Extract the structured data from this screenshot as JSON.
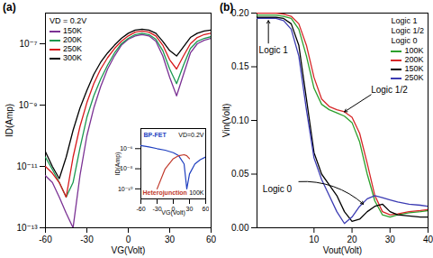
{
  "chart_data": [
    {
      "type": "line",
      "title": "(a)",
      "x_label": "VG(Volt)",
      "y_label": "ID(Amp)",
      "log": "y",
      "legend": "top-left",
      "annotations": [
        "VD = 0.2V"
      ],
      "xlim": [
        -60,
        60
      ],
      "xticks": [
        -60,
        -30,
        0,
        30,
        60
      ],
      "ylim": [
        1e-13,
        1e-06
      ],
      "yticks": [
        {
          "value": 1e-13,
          "label": "10⁻¹³"
        },
        {
          "value": 1e-11,
          "label": "10⁻¹¹"
        },
        {
          "value": 1e-09,
          "label": "10⁻⁹"
        },
        {
          "value": 1e-07,
          "label": "10⁻⁷"
        }
      ],
      "x": [
        -60,
        -55,
        -50,
        -45,
        -40,
        -35,
        -30,
        -25,
        -20,
        -15,
        -10,
        -5,
        0,
        5,
        10,
        15,
        20,
        25,
        30,
        35,
        40,
        45,
        50,
        55,
        60
      ],
      "series": [
        {
          "name": "150K",
          "color": "#7b3294",
          "values": [
            5e-12,
            3e-12,
            1e-12,
            3e-13,
            1e-13,
            5e-12,
            1e-10,
            8e-10,
            4e-09,
            1.5e-08,
            4e-08,
            9e-08,
            1.4e-07,
            1.8e-07,
            2e-07,
            1.8e-07,
            1.2e-07,
            4e-08,
            8e-09,
            2e-09,
            1e-08,
            5e-08,
            1e-07,
            1.3e-07,
            1.5e-07
          ]
        },
        {
          "name": "200K",
          "color": "#1a9850",
          "values": [
            2e-11,
            8e-12,
            3e-12,
            1e-12,
            3e-12,
            4e-11,
            4e-10,
            2e-09,
            7e-09,
            2e-08,
            5e-08,
            1e-07,
            1.5e-07,
            2e-07,
            2.2e-07,
            2e-07,
            1.4e-07,
            6e-08,
            1.5e-08,
            5e-09,
            2e-08,
            7e-08,
            1.2e-07,
            1.5e-07,
            1.7e-07
          ]
        },
        {
          "name": "250K",
          "color": "#d7191c",
          "values": [
            1e-11,
            6e-12,
            3e-12,
            1e-12,
            2e-11,
            2e-10,
            1.2e-09,
            5e-09,
            1.5e-08,
            3.5e-08,
            7e-08,
            1.2e-07,
            1.8e-07,
            2.4e-07,
            2.6e-07,
            2.4e-07,
            1.8e-07,
            9e-08,
            3e-08,
            1.5e-08,
            4e-08,
            1e-07,
            1.6e-07,
            2e-07,
            2.2e-07
          ]
        },
        {
          "name": "300K",
          "color": "#000000",
          "values": [
            3e-11,
            1e-11,
            4e-12,
            2e-11,
            1.5e-10,
            8e-10,
            3e-09,
            1e-08,
            2.5e-08,
            5e-08,
            9e-08,
            1.5e-07,
            2.2e-07,
            2.8e-07,
            3e-07,
            2.8e-07,
            2.2e-07,
            1.2e-07,
            6e-08,
            4e-08,
            8e-08,
            1.6e-07,
            2.2e-07,
            2.6e-07,
            2.8e-07
          ]
        }
      ]
    },
    {
      "type": "line",
      "x_label": "VG(Volt)",
      "y_label": "ID(Amp)",
      "log": "y",
      "annotations": [
        "VD=0.2V",
        "100K"
      ],
      "xlim": [
        -60,
        60
      ],
      "xticks": [
        -60,
        -30,
        0,
        30,
        60
      ],
      "ylim": [
        1e-11,
        0.0001
      ],
      "yticks": [
        {
          "value": 1e-10,
          "label": "10⁻¹⁰"
        },
        {
          "value": 1e-08,
          "label": "10⁻⁸"
        },
        {
          "value": 1e-06,
          "label": "10⁻⁶"
        }
      ],
      "x": [
        -60,
        -45,
        -30,
        -15,
        0,
        10,
        20,
        25,
        30,
        40,
        50,
        60
      ],
      "series": [
        {
          "name": "BP-FET",
          "color": "#1f3fbf",
          "values": [
            2e-06,
            1.5e-06,
            1e-06,
            7e-07,
            4e-07,
            2e-07,
            3e-08,
            1e-10,
            3e-09,
            3e-08,
            8e-08,
            1.5e-07
          ]
        },
        {
          "name": "Heterojunction",
          "color": "#c0392b",
          "values": [
            null,
            null,
            1e-10,
            1e-08,
            1e-07,
            2e-07,
            2.5e-07,
            2e-07,
            1e-07,
            null,
            null,
            null
          ]
        }
      ]
    },
    {
      "type": "line",
      "title": "(b)",
      "x_label": "Vout(Volt)",
      "y_label": "Vin(Volt)",
      "legend": "top-right",
      "annotations": [
        "Logic 1",
        "Logic 1/2",
        "Logic 0"
      ],
      "xlim": [
        -5,
        40
      ],
      "xticks": [
        10,
        20,
        30,
        40
      ],
      "ylim": [
        0,
        0.2
      ],
      "yticks": [
        {
          "value": 0,
          "label": "0.00"
        },
        {
          "value": 0.05,
          "label": "0.05"
        },
        {
          "value": 0.1,
          "label": "0.10"
        },
        {
          "value": 0.15,
          "label": "0.15"
        },
        {
          "value": 0.2,
          "label": "0.20"
        }
      ],
      "x": [
        -5,
        0,
        2,
        4,
        6,
        8,
        10,
        12,
        14,
        16,
        18,
        20,
        22,
        24,
        26,
        28,
        30,
        32,
        35,
        38,
        40
      ],
      "series": [
        {
          "name": "100K",
          "color": "#2ca02c",
          "values": [
            0.198,
            0.198,
            0.197,
            0.195,
            0.185,
            0.16,
            0.13,
            0.115,
            0.11,
            0.107,
            0.104,
            0.098,
            0.08,
            0.05,
            0.025,
            0.012,
            0.01,
            0.012,
            0.014,
            0.015,
            0.016
          ]
        },
        {
          "name": "200K",
          "color": "#d62728",
          "values": [
            0.2,
            0.2,
            0.199,
            0.197,
            0.19,
            0.17,
            0.14,
            0.12,
            0.113,
            0.11,
            0.108,
            0.103,
            0.088,
            0.06,
            0.03,
            0.015,
            0.012,
            0.013,
            0.015,
            0.016,
            0.017
          ]
        },
        {
          "name": "150K",
          "color": "#000000",
          "values": [
            0.196,
            0.196,
            0.195,
            0.19,
            0.17,
            0.12,
            0.07,
            0.05,
            0.04,
            0.03,
            0.015,
            0.006,
            0.008,
            0.015,
            0.02,
            0.022,
            0.015,
            0.012,
            0.011,
            0.01,
            0.01
          ]
        },
        {
          "name": "250K",
          "color": "#3b3bb3",
          "values": [
            0.195,
            0.195,
            0.193,
            0.185,
            0.16,
            0.11,
            0.065,
            0.045,
            0.03,
            0.015,
            0.004,
            0.01,
            0.02,
            0.027,
            0.03,
            0.028,
            0.026,
            0.024,
            0.022,
            0.021,
            0.02
          ]
        }
      ]
    }
  ]
}
